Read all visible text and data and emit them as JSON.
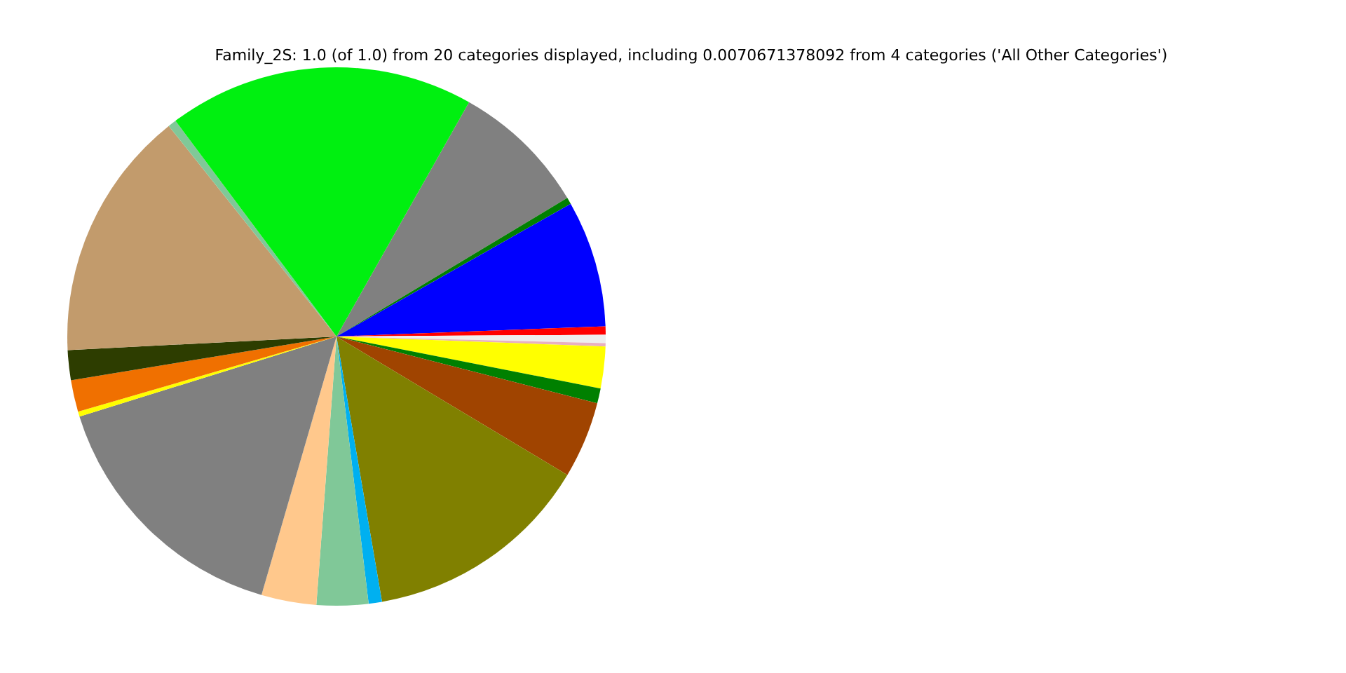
{
  "chart_data": {
    "type": "pie",
    "title": "Family_2S: 1.0 (of 1.0) from 20 categories displayed, including 0.0070671378092 from 4 categories ('All Other Categories')",
    "categories": [
      null,
      null,
      null,
      null,
      null,
      null,
      null,
      null,
      null,
      null,
      null,
      null,
      null,
      null,
      null,
      null,
      null,
      null,
      null,
      null
    ],
    "values": [
      8.2,
      0.4,
      7.6,
      0.5,
      0.5,
      0.2,
      2.5,
      0.9,
      4.6,
      13.7,
      0.8,
      3.1,
      3.3,
      15.7,
      0.3,
      1.9,
      1.8,
      15.1,
      0.5,
      18.4
    ],
    "colors": [
      "#808080",
      "#008000",
      "#0000ff",
      "#ff0000",
      "#eeeeee",
      "#e8b0c0",
      "#ffff00",
      "#008000",
      "#a04400",
      "#808000",
      "#00b0f0",
      "#80c898",
      "#ffc88c",
      "#808080",
      "#ffff00",
      "#f07000",
      "#2d3d00",
      "#c29b6c",
      "#80c898",
      "#00f010"
    ]
  }
}
